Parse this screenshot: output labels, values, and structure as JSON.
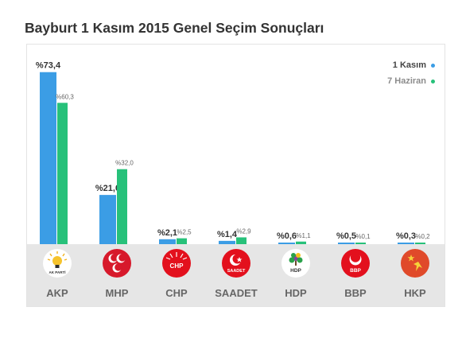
{
  "title": "Bayburt 1 Kasım 2015 Genel Seçim Sonuçları",
  "colors": {
    "series1": "#3b9de5",
    "series2": "#27c17a",
    "panel": "#e6e6e6"
  },
  "legend": {
    "series1": "1 Kasım",
    "series2": "7 Haziran"
  },
  "chart_data": {
    "type": "bar",
    "title": "Bayburt 1 Kasım 2015 Genel Seçim Sonuçları",
    "xlabel": "",
    "ylabel": "",
    "ylim": [
      0,
      75
    ],
    "grid": false,
    "legend_position": "top-right",
    "categories": [
      "AKP",
      "MHP",
      "CHP",
      "SAADET",
      "HDP",
      "BBP",
      "HKP"
    ],
    "series": [
      {
        "name": "1 Kasım",
        "values": [
          73.4,
          21.0,
          2.1,
          1.4,
          0.6,
          0.5,
          0.3
        ],
        "labels": [
          "%73,4",
          "%21,0",
          "%2,1",
          "%1,4",
          "%0,6",
          "%0,5",
          "%0,3"
        ]
      },
      {
        "name": "7 Haziran",
        "values": [
          60.3,
          32.0,
          2.5,
          2.9,
          1.1,
          0.1,
          0.2
        ],
        "labels": [
          "%60,3",
          "%32,0",
          "%2,5",
          "%2,9",
          "%1,1",
          "%0,1",
          "%0,2"
        ]
      }
    ]
  },
  "parties": [
    {
      "name": "AKP",
      "logo": "akp-bulb-logo",
      "logo_text": "AK PARTİ",
      "logo_bg": "#ffffff"
    },
    {
      "name": "MHP",
      "logo": "mhp-crescents-logo",
      "logo_text": "",
      "logo_bg": "#d7192b"
    },
    {
      "name": "CHP",
      "logo": "chp-arrows-logo",
      "logo_text": "CHP",
      "logo_bg": "#e3101d"
    },
    {
      "name": "SAADET",
      "logo": "saadet-crescent-star-logo",
      "logo_text": "SAADET",
      "logo_bg": "#e3101d"
    },
    {
      "name": "HDP",
      "logo": "hdp-tree-logo",
      "logo_text": "HDP",
      "logo_bg": "#ffffff"
    },
    {
      "name": "BBP",
      "logo": "bbp-crescent-logo",
      "logo_text": "BBP",
      "logo_bg": "#e3101d"
    },
    {
      "name": "HKP",
      "logo": "hkp-star-logo",
      "logo_text": "",
      "logo_bg": "#e04a2a"
    }
  ]
}
